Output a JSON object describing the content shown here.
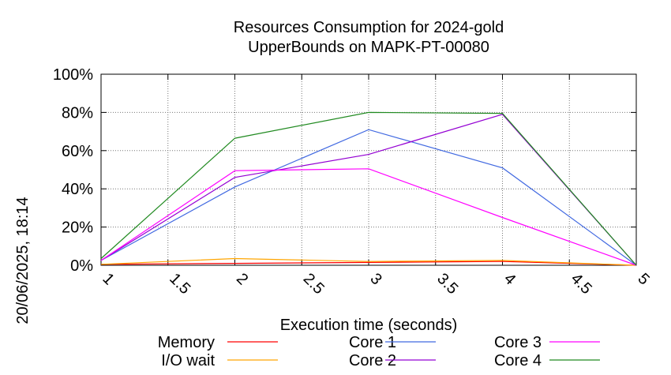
{
  "chart_data": {
    "type": "line",
    "title_line1": "Resources Consumption for 2024-gold",
    "title_line2": "UpperBounds on MAPK-PT-00080",
    "xlabel": "Execution time (seconds)",
    "side_label": "20/06/2025, 18:14",
    "xlim": [
      1,
      5
    ],
    "ylim": [
      0,
      100
    ],
    "xticks": [
      "1",
      "1.5",
      "2",
      "2.5",
      "3",
      "3.5",
      "4",
      "4.5",
      "5"
    ],
    "yticks": [
      "0%",
      "20%",
      "40%",
      "60%",
      "80%",
      "100%"
    ],
    "grid": true,
    "legend_position": "bottom",
    "x": [
      1,
      2,
      3,
      4,
      5
    ],
    "series": [
      {
        "name": "Memory",
        "color": "#ff0000",
        "values": [
          0.5,
          1.0,
          1.5,
          2.0,
          0
        ]
      },
      {
        "name": "I/O wait",
        "color": "#ffa500",
        "values": [
          0.5,
          3.5,
          2.0,
          2.5,
          0
        ]
      },
      {
        "name": "Core 1",
        "color": "#4169e1",
        "values": [
          2.5,
          41,
          71,
          51,
          0
        ]
      },
      {
        "name": "Core 2",
        "color": "#9400d3",
        "values": [
          2.5,
          46,
          58,
          79,
          0
        ]
      },
      {
        "name": "Core 3",
        "color": "#ff00ff",
        "values": [
          2.5,
          49.5,
          50.5,
          25,
          0
        ]
      },
      {
        "name": "Core 4",
        "color": "#228b22",
        "values": [
          3.5,
          66.5,
          80,
          79.5,
          0
        ]
      }
    ]
  }
}
